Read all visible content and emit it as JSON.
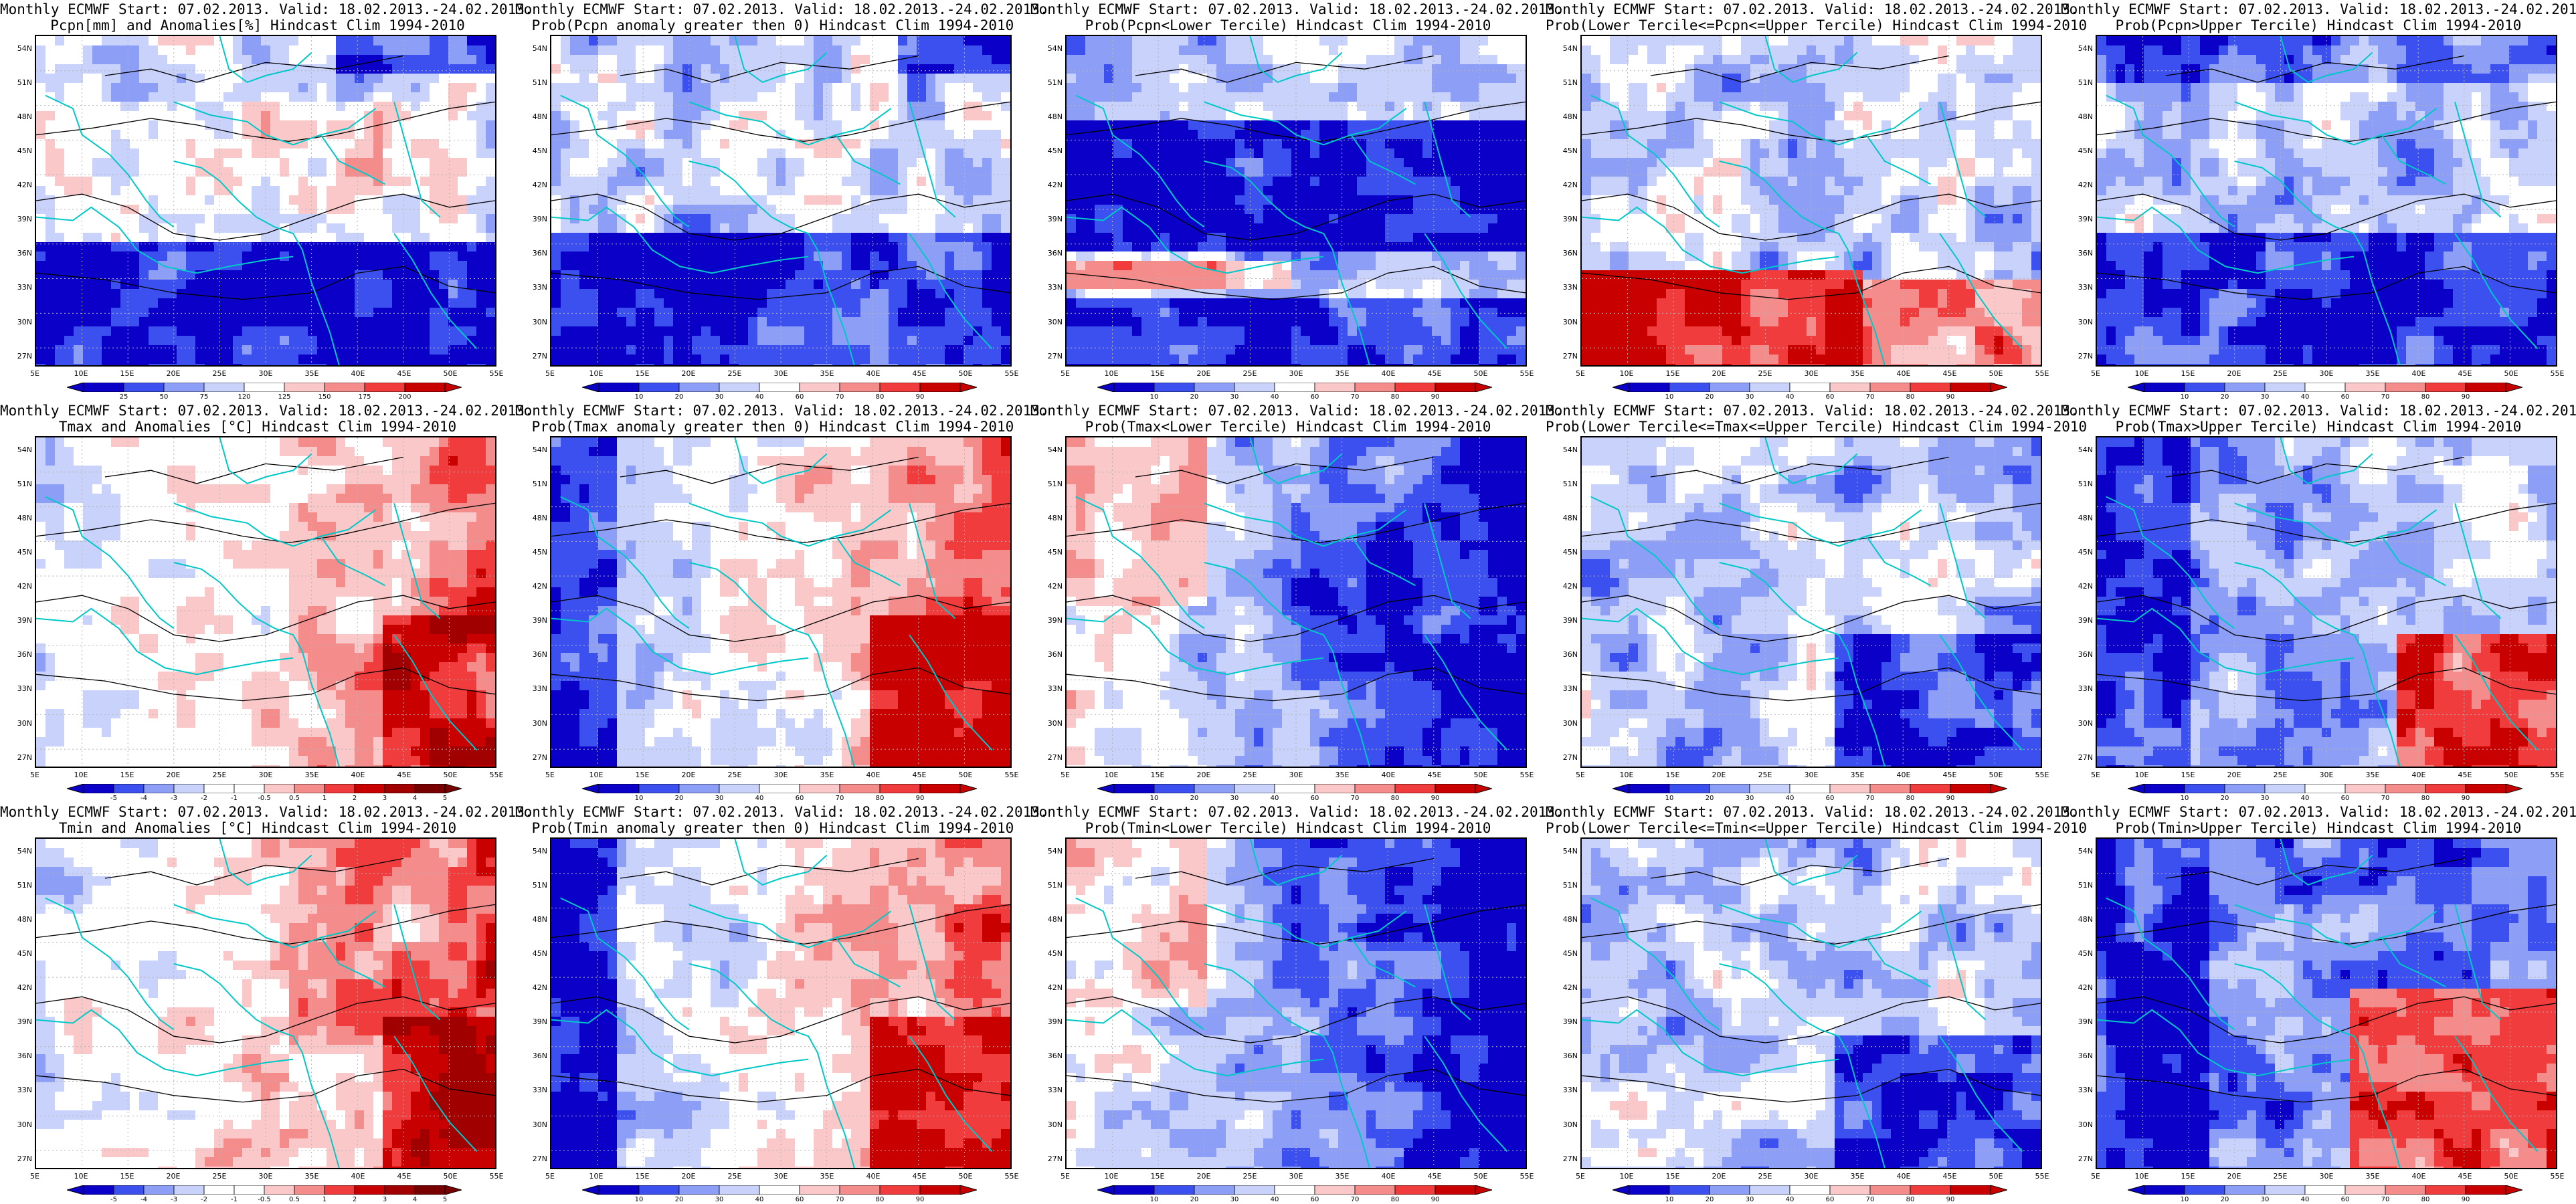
{
  "colors": {
    "dark_blue": "#0a00c8",
    "mid_blue": "#3c50f0",
    "light_blue": "#8c9ef5",
    "pale_blue": "#c8d2fa",
    "white": "#ffffff",
    "pale_red": "#fac8c8",
    "light_red": "#f58c8c",
    "mid_red": "#f03c3c",
    "dark_red": "#c80000",
    "coast": "#00c8c8",
    "contour": "#000000"
  },
  "axes": {
    "lat_labels": [
      "54N",
      "51N",
      "48N",
      "45N",
      "42N",
      "39N",
      "36N",
      "33N",
      "30N",
      "27N"
    ],
    "lon_labels": [
      "5E",
      "10E",
      "15E",
      "20E",
      "25E",
      "30E",
      "35E",
      "40E",
      "45E",
      "50E",
      "55E"
    ]
  },
  "colorbars": {
    "pcpn_anom": [
      "25",
      "50",
      "75",
      "120",
      "125",
      "150",
      "175",
      "200"
    ],
    "prob": [
      "10",
      "20",
      "30",
      "40",
      "60",
      "70",
      "80",
      "90"
    ],
    "temp_anom": [
      "-5",
      "-4",
      "-3",
      "-2",
      "-1",
      "-0.5",
      "0.5",
      "1",
      "2",
      "3",
      "4",
      "5"
    ]
  },
  "panels": [
    {
      "id": "r1c1",
      "title1": "Monthly ECMWF Start: 07.02.2013. Valid: 18.02.2013.-24.02.2013.",
      "title2": "Pcpn[mm] and Anomalies[%] Hindcast Clim 1994-2010",
      "bar": "pcpn_anom",
      "pattern": "pcpn_anom"
    },
    {
      "id": "r1c2",
      "title1": "Monthly ECMWF Start: 07.02.2013. Valid: 18.02.2013.-24.02.2013.",
      "title2": "Prob(Pcpn anomaly greater then 0) Hindcast Clim 1994-2010",
      "bar": "prob",
      "pattern": "pcpn_gt0"
    },
    {
      "id": "r1c3",
      "title1": "Monthly ECMWF Start: 07.02.2013. Valid: 18.02.2013.-24.02.2013.",
      "title2": "Prob(Pcpn<Lower Tercile) Hindcast Clim 1994-2010",
      "bar": "prob",
      "pattern": "pcpn_lower"
    },
    {
      "id": "r1c4",
      "title1": "Monthly ECMWF Start: 07.02.2013. Valid: 18.02.2013.-24.02.2013.",
      "title2": "Prob(Lower Tercile<=Pcpn<=Upper Tercile) Hindcast Clim 1994-2010",
      "bar": "prob",
      "pattern": "pcpn_mid"
    },
    {
      "id": "r1c5",
      "title1": "Monthly ECMWF Start: 07.02.2013. Valid: 18.02.2013.-24.02.2013.",
      "title2": "Prob(Pcpn>Upper Tercile) Hindcast Clim 1994-2010",
      "bar": "prob",
      "pattern": "pcpn_upper"
    },
    {
      "id": "r2c1",
      "title1": "Monthly ECMWF Start: 07.02.2013. Valid: 18.02.2013.-24.02.2013.",
      "title2": "Tmax and Anomalies [°C] Hindcast Clim 1994-2010",
      "bar": "temp_anom",
      "pattern": "warm_east"
    },
    {
      "id": "r2c2",
      "title1": "Monthly ECMWF Start: 07.02.2013. Valid: 18.02.2013.-24.02.2013.",
      "title2": "Prob(Tmax anomaly greater then 0) Hindcast Clim 1994-2010",
      "bar": "prob",
      "pattern": "warm_east_strong"
    },
    {
      "id": "r2c3",
      "title1": "Monthly ECMWF Start: 07.02.2013. Valid: 18.02.2013.-24.02.2013.",
      "title2": "Prob(Tmax<Lower Tercile) Hindcast Clim 1994-2010",
      "bar": "prob",
      "pattern": "cold_low_east"
    },
    {
      "id": "r2c4",
      "title1": "Monthly ECMWF Start: 07.02.2013. Valid: 18.02.2013.-24.02.2013.",
      "title2": "Prob(Lower Tercile<=Tmax<=Upper Tercile) Hindcast Clim 1994-2010",
      "bar": "prob",
      "pattern": "mid_bluish"
    },
    {
      "id": "r2c5",
      "title1": "Monthly ECMWF Start: 07.02.2013. Valid: 18.02.2013.-24.02.2013.",
      "title2": "Prob(Tmax>Upper Tercile) Hindcast Clim 1994-2010",
      "bar": "prob",
      "pattern": "upper_se"
    },
    {
      "id": "r3c1",
      "title1": "Monthly ECMWF Start: 07.02.2013. Valid: 18.02.2013.-24.02.2013.",
      "title2": "Tmin and Anomalies [°C] Hindcast Clim 1994-2010",
      "bar": "temp_anom",
      "pattern": "warm_east"
    },
    {
      "id": "r3c2",
      "title1": "Monthly ECMWF Start: 07.02.2013. Valid: 18.02.2013.-24.02.2013.",
      "title2": "Prob(Tmin anomaly greater then 0) Hindcast Clim 1994-2010",
      "bar": "prob",
      "pattern": "warm_east_strong"
    },
    {
      "id": "r3c3",
      "title1": "Monthly ECMWF Start: 07.02.2013. Valid: 18.02.2013.-24.02.2013.",
      "title2": "Prob(Tmin<Lower Tercile) Hindcast Clim 1994-2010",
      "bar": "prob",
      "pattern": "cold_low_east"
    },
    {
      "id": "r3c4",
      "title1": "Monthly ECMWF Start: 07.02.2013. Valid: 18.02.2013.-24.02.2013.",
      "title2": "Prob(Lower Tercile<=Tmin<=Upper Tercile) Hindcast Clim 1994-2010",
      "bar": "prob",
      "pattern": "mid_bluish"
    },
    {
      "id": "r3c5",
      "title1": "Monthly ECMWF Start: 07.02.2013. Valid: 18.02.2013.-24.02.2013.",
      "title2": "Prob(Tmin>Upper Tercile) Hindcast Clim 1994-2010",
      "bar": "prob",
      "pattern": "upper_se_strong"
    }
  ]
}
